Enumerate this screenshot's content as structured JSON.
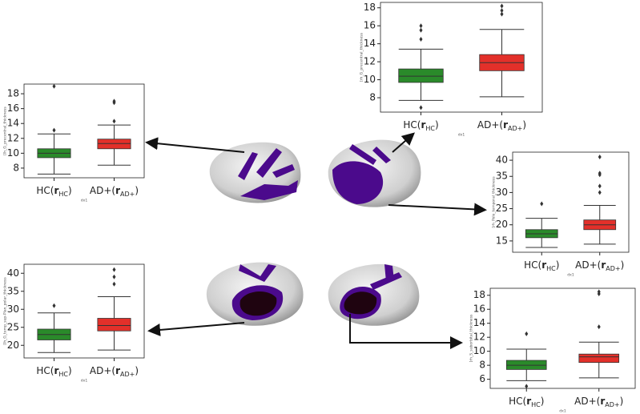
{
  "chart_data": [
    {
      "type": "box",
      "y_label": "[lh_G_precentral_thickness",
      "x_label": "dx1",
      "categories": [
        [
          "HC(",
          "r",
          "HC",
          ")"
        ],
        [
          "AD+(",
          "r",
          "AD+",
          ")"
        ]
      ],
      "ylim": [
        6.7,
        19.3
      ],
      "yticks": [
        8,
        10,
        12,
        14,
        16,
        18
      ],
      "boxes": [
        {
          "color": "#2a8a2a",
          "whisker_low": 7.2,
          "q1": 9.4,
          "median": 10,
          "q3": 10.6,
          "whisker_high": 12.6,
          "outliers": [
            13.1,
            19
          ]
        },
        {
          "color": "#e3302a",
          "whisker_low": 8.4,
          "q1": 10.6,
          "median": 11.3,
          "q3": 11.9,
          "whisker_high": 13.8,
          "outliers": [
            14.3,
            16.8,
            17
          ]
        }
      ]
    },
    {
      "type": "box",
      "y_label": "[rh_G_precentral_thickness",
      "x_label": "dx1",
      "categories": [
        [
          "HC(",
          "r",
          "HC",
          ")"
        ],
        [
          "AD+(",
          "r",
          "AD+",
          ")"
        ]
      ],
      "ylim": [
        6.4,
        18.6
      ],
      "yticks": [
        8,
        10,
        12,
        14,
        16,
        18
      ],
      "boxes": [
        {
          "color": "#2a8a2a",
          "whisker_low": 7.7,
          "q1": 9.7,
          "median": 10.4,
          "q3": 11.2,
          "whisker_high": 13.4,
          "outliers": [
            6.9,
            14.5,
            15.5,
            16
          ]
        },
        {
          "color": "#e3302a",
          "whisker_low": 8.1,
          "q1": 11,
          "median": 11.9,
          "q3": 12.8,
          "whisker_high": 15.6,
          "outliers": [
            17.3,
            17.7,
            18.2
          ]
        }
      ]
    },
    {
      "type": "box",
      "y_label": "[rh_Pole_temporal_thickness",
      "x_label": "dx1",
      "categories": [
        [
          "HC(",
          "r",
          "HC",
          ")"
        ],
        [
          "AD+(",
          "r",
          "AD+",
          ")"
        ]
      ],
      "ylim": [
        11.5,
        42.5
      ],
      "yticks": [
        15,
        20,
        25,
        30,
        35,
        40
      ],
      "boxes": [
        {
          "color": "#2a8a2a",
          "whisker_low": 13,
          "q1": 16,
          "median": 17.2,
          "q3": 18.5,
          "whisker_high": 22,
          "outliers": [
            26.5
          ]
        },
        {
          "color": "#e3302a",
          "whisker_low": 14,
          "q1": 18.5,
          "median": 20,
          "q3": 21.5,
          "whisker_high": 26,
          "outliers": [
            30,
            32,
            35.5,
            36,
            41
          ]
        }
      ]
    },
    {
      "type": "box",
      "y_label": "[lh_G_temp_sup-Plan_polar_thickness",
      "x_label": "dx1",
      "categories": [
        [
          "HC(",
          "r",
          "HC",
          ")"
        ],
        [
          "AD+(",
          "r",
          "AD+",
          ")"
        ]
      ],
      "ylim": [
        16.5,
        42.5
      ],
      "yticks": [
        20,
        25,
        30,
        35,
        40
      ],
      "boxes": [
        {
          "color": "#2a8a2a",
          "whisker_low": 18,
          "q1": 21.5,
          "median": 23,
          "q3": 24.5,
          "whisker_high": 29,
          "outliers": [
            31
          ]
        },
        {
          "color": "#e3302a",
          "whisker_low": 18.7,
          "q1": 24,
          "median": 25.5,
          "q3": 27.5,
          "whisker_high": 33.5,
          "outliers": [
            37,
            39,
            41
          ]
        }
      ]
    },
    {
      "type": "box",
      "y_label": "[rh_S_suborbital_thickness",
      "x_label": "dx1",
      "categories": [
        [
          "HC(",
          "r",
          "HC",
          ")"
        ],
        [
          "AD+(",
          "r",
          "AD+",
          ")"
        ]
      ],
      "ylim": [
        4.7,
        19
      ],
      "yticks": [
        6,
        8,
        10,
        12,
        14,
        16,
        18
      ],
      "boxes": [
        {
          "color": "#2a8a2a",
          "whisker_low": 5.8,
          "q1": 7.4,
          "median": 8,
          "q3": 8.7,
          "whisker_high": 10.3,
          "outliers": [
            5,
            12.5
          ]
        },
        {
          "color": "#e3302a",
          "whisker_low": 6.2,
          "q1": 8.4,
          "median": 9.2,
          "q3": 9.6,
          "whisker_high": 11.3,
          "outliers": [
            13.5,
            18.2,
            18.5
          ]
        }
      ]
    }
  ]
}
